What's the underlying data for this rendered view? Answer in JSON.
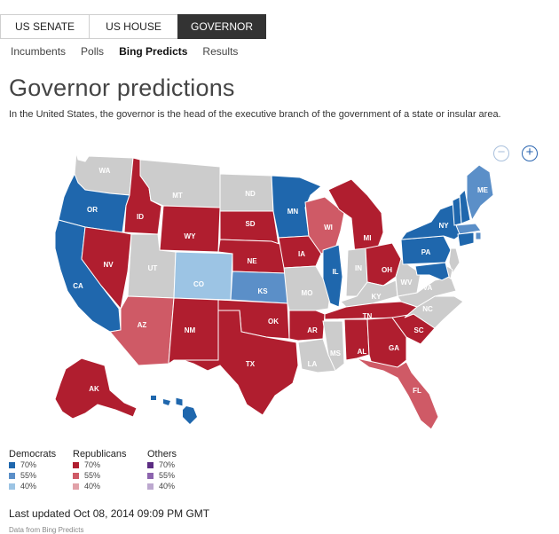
{
  "tabs": [
    "US SENATE",
    "US HOUSE",
    "GOVERNOR"
  ],
  "subnav": [
    "Incumbents",
    "Polls",
    "Bing Predicts",
    "Results"
  ],
  "title": "Governor predictions",
  "subtitle": "In the United States, the governor is the head of the executive branch of the government of a state or insular area.",
  "zoom": {
    "minus": "−",
    "plus": "+"
  },
  "colors": {
    "D70": "#1f67ad",
    "D55": "#5b8fc8",
    "D40": "#9cc4e4",
    "R70": "#b01e2f",
    "R55": "#cf5a66",
    "R40": "#e1a1a8",
    "O70": "#5c2d83",
    "O55": "#8c64ae",
    "O40": "#bca8cf",
    "none": "#cccccc"
  },
  "states": [
    {
      "abbr": "WA",
      "cat": "none"
    },
    {
      "abbr": "OR",
      "cat": "D70"
    },
    {
      "abbr": "CA",
      "cat": "D70"
    },
    {
      "abbr": "ID",
      "cat": "R70"
    },
    {
      "abbr": "NV",
      "cat": "R70"
    },
    {
      "abbr": "MT",
      "cat": "none"
    },
    {
      "abbr": "WY",
      "cat": "R70"
    },
    {
      "abbr": "UT",
      "cat": "none"
    },
    {
      "abbr": "AZ",
      "cat": "R55"
    },
    {
      "abbr": "CO",
      "cat": "D40"
    },
    {
      "abbr": "NM",
      "cat": "R70"
    },
    {
      "abbr": "ND",
      "cat": "none"
    },
    {
      "abbr": "SD",
      "cat": "R70"
    },
    {
      "abbr": "NE",
      "cat": "R70"
    },
    {
      "abbr": "KS",
      "cat": "D55"
    },
    {
      "abbr": "OK",
      "cat": "R70"
    },
    {
      "abbr": "TX",
      "cat": "R70"
    },
    {
      "abbr": "MN",
      "cat": "D70"
    },
    {
      "abbr": "IA",
      "cat": "R70"
    },
    {
      "abbr": "MO",
      "cat": "none"
    },
    {
      "abbr": "AR",
      "cat": "R70"
    },
    {
      "abbr": "LA",
      "cat": "none"
    },
    {
      "abbr": "WI",
      "cat": "R55"
    },
    {
      "abbr": "IL",
      "cat": "D70"
    },
    {
      "abbr": "MI",
      "cat": "R70"
    },
    {
      "abbr": "IN",
      "cat": "none"
    },
    {
      "abbr": "OH",
      "cat": "R70"
    },
    {
      "abbr": "KY",
      "cat": "none"
    },
    {
      "abbr": "TN",
      "cat": "R70"
    },
    {
      "abbr": "MS",
      "cat": "none"
    },
    {
      "abbr": "AL",
      "cat": "R70"
    },
    {
      "abbr": "GA",
      "cat": "R70"
    },
    {
      "abbr": "FL",
      "cat": "R55"
    },
    {
      "abbr": "SC",
      "cat": "R70"
    },
    {
      "abbr": "NC",
      "cat": "none"
    },
    {
      "abbr": "VA",
      "cat": "none"
    },
    {
      "abbr": "WV",
      "cat": "none"
    },
    {
      "abbr": "PA",
      "cat": "D70"
    },
    {
      "abbr": "NY",
      "cat": "D70"
    },
    {
      "abbr": "ME",
      "cat": "D55"
    },
    {
      "abbr": "AK",
      "cat": "R70"
    },
    {
      "abbr": "HI",
      "cat": "D70"
    },
    {
      "abbr": "VT",
      "cat": "D70"
    },
    {
      "abbr": "NH",
      "cat": "D70"
    },
    {
      "abbr": "MA",
      "cat": "D55"
    },
    {
      "abbr": "CT",
      "cat": "D70"
    },
    {
      "abbr": "RI",
      "cat": "D55"
    },
    {
      "abbr": "NJ",
      "cat": "none"
    },
    {
      "abbr": "DE",
      "cat": "none"
    },
    {
      "abbr": "MD",
      "cat": "D70"
    }
  ],
  "legend": {
    "groups": [
      {
        "name": "Democrats",
        "items": [
          {
            "label": "70%",
            "color": "#1f67ad"
          },
          {
            "label": "55%",
            "color": "#5b8fc8"
          },
          {
            "label": "40%",
            "color": "#9cc4e4"
          }
        ]
      },
      {
        "name": "Republicans",
        "items": [
          {
            "label": "70%",
            "color": "#b01e2f"
          },
          {
            "label": "55%",
            "color": "#cf5a66"
          },
          {
            "label": "40%",
            "color": "#e1a1a8"
          }
        ]
      },
      {
        "name": "Others",
        "items": [
          {
            "label": "70%",
            "color": "#5c2d83"
          },
          {
            "label": "55%",
            "color": "#8c64ae"
          },
          {
            "label": "40%",
            "color": "#bca8cf"
          }
        ]
      }
    ]
  },
  "updated": "Last updated Oct 08, 2014 09:09 PM GMT",
  "source": "Data from Bing Predicts"
}
